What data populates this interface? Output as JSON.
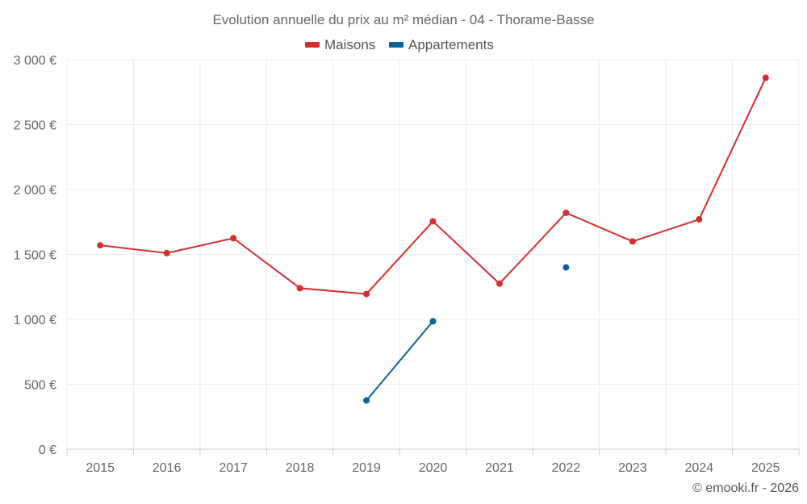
{
  "chart_data": {
    "type": "line",
    "title": "Evolution annuelle du prix au m² médian - 04 - Thorame-Basse",
    "categories": [
      "2015",
      "2016",
      "2017",
      "2018",
      "2019",
      "2020",
      "2021",
      "2022",
      "2023",
      "2024",
      "2025"
    ],
    "series": [
      {
        "name": "Maisons",
        "color": "#d32f2f",
        "values": [
          1570,
          1510,
          1625,
          1240,
          1195,
          1755,
          1275,
          1820,
          1600,
          1770,
          2860
        ]
      },
      {
        "name": "Appartements",
        "color": "#0b6396",
        "values": [
          null,
          null,
          null,
          null,
          375,
          985,
          null,
          1400,
          null,
          null,
          null
        ]
      }
    ],
    "ylim": [
      0,
      3000
    ],
    "yticks": [
      0,
      500,
      1000,
      1500,
      2000,
      2500,
      3000
    ],
    "ytick_labels": [
      "0 €",
      "500 €",
      "1 000 €",
      "1 500 €",
      "2 000 €",
      "2 500 €",
      "3 000 €"
    ],
    "xlabel": "",
    "ylabel": "",
    "grid": true,
    "legend_position": "top-center"
  },
  "credit": "© emooki.fr - 2026"
}
